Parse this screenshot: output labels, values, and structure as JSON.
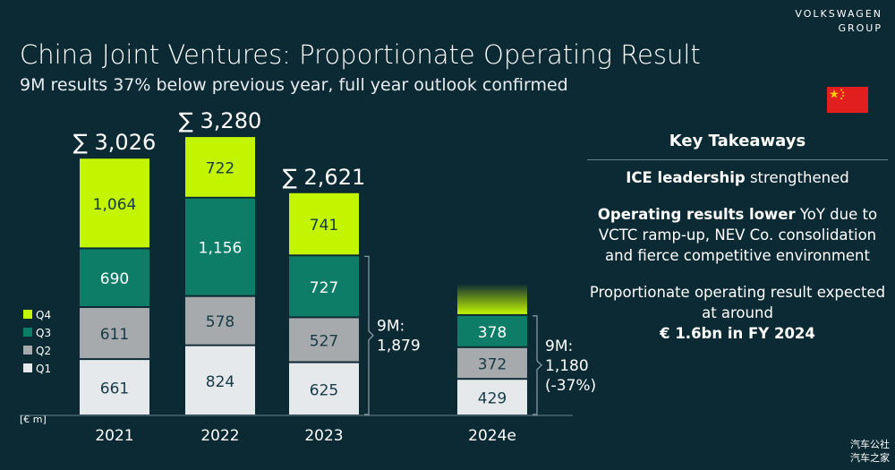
{
  "brand": {
    "line1": "VOLKSWAGEN",
    "line2": "GROUP"
  },
  "title": "China Joint Ventures: Proportionate Operating Result",
  "subtitle": "9M results 37% below previous year, full year outlook confirmed",
  "flag_icon": "china-flag-icon",
  "key_takeaways": {
    "heading": "Key Takeaways",
    "item1": {
      "bold": "ICE leadership",
      "rest": " strengthened"
    },
    "item2": {
      "bold": "Operating results lower",
      "rest": " YoY due to VCTC ramp-up, NEV Co. consolidation and fierce competitive environment"
    },
    "item3": {
      "pre": "Proportionate operating result expected at around",
      "bold": "€ 1.6bn in FY 2024"
    }
  },
  "watermark": {
    "line1": "汽车公社",
    "line2": "汽车之家"
  },
  "chart_data": {
    "type": "bar",
    "stacked": true,
    "unit_label": "[€ m]",
    "categories": [
      "2021",
      "2022",
      "2023",
      "2024e"
    ],
    "series": [
      {
        "name": "Q1",
        "color": "#e5e9ec",
        "values": [
          661,
          824,
          625,
          429
        ]
      },
      {
        "name": "Q2",
        "color": "#a7aaac",
        "values": [
          611,
          578,
          527,
          372
        ]
      },
      {
        "name": "Q3",
        "color": "#0e7d68",
        "values": [
          690,
          1156,
          727,
          378
        ]
      },
      {
        "name": "Q4",
        "color": "#c3f500",
        "values": [
          1064,
          722,
          741,
          null
        ]
      }
    ],
    "value_labels": [
      [
        "661",
        "611",
        "690",
        "1,064"
      ],
      [
        "824",
        "578",
        "1,156",
        "722"
      ],
      [
        "625",
        "527",
        "727",
        "741"
      ],
      [
        "429",
        "372",
        "378",
        ""
      ]
    ],
    "totals": [
      "∑ 3,026",
      "∑ 3,280",
      "∑ 2,621",
      ""
    ],
    "nine_month_annotations": [
      {
        "category": "2023",
        "label_line1": "9M:",
        "label_line2": "1,879",
        "label_line3": ""
      },
      {
        "category": "2024e",
        "label_line1": "9M:",
        "label_line2": "1,180",
        "label_line3": "(-37%)"
      }
    ],
    "q4_outlook_gradient": {
      "category": "2024e",
      "color": "#c3f500"
    },
    "legend": {
      "placement": "left",
      "order": [
        "Q4",
        "Q3",
        "Q2",
        "Q1"
      ]
    }
  }
}
